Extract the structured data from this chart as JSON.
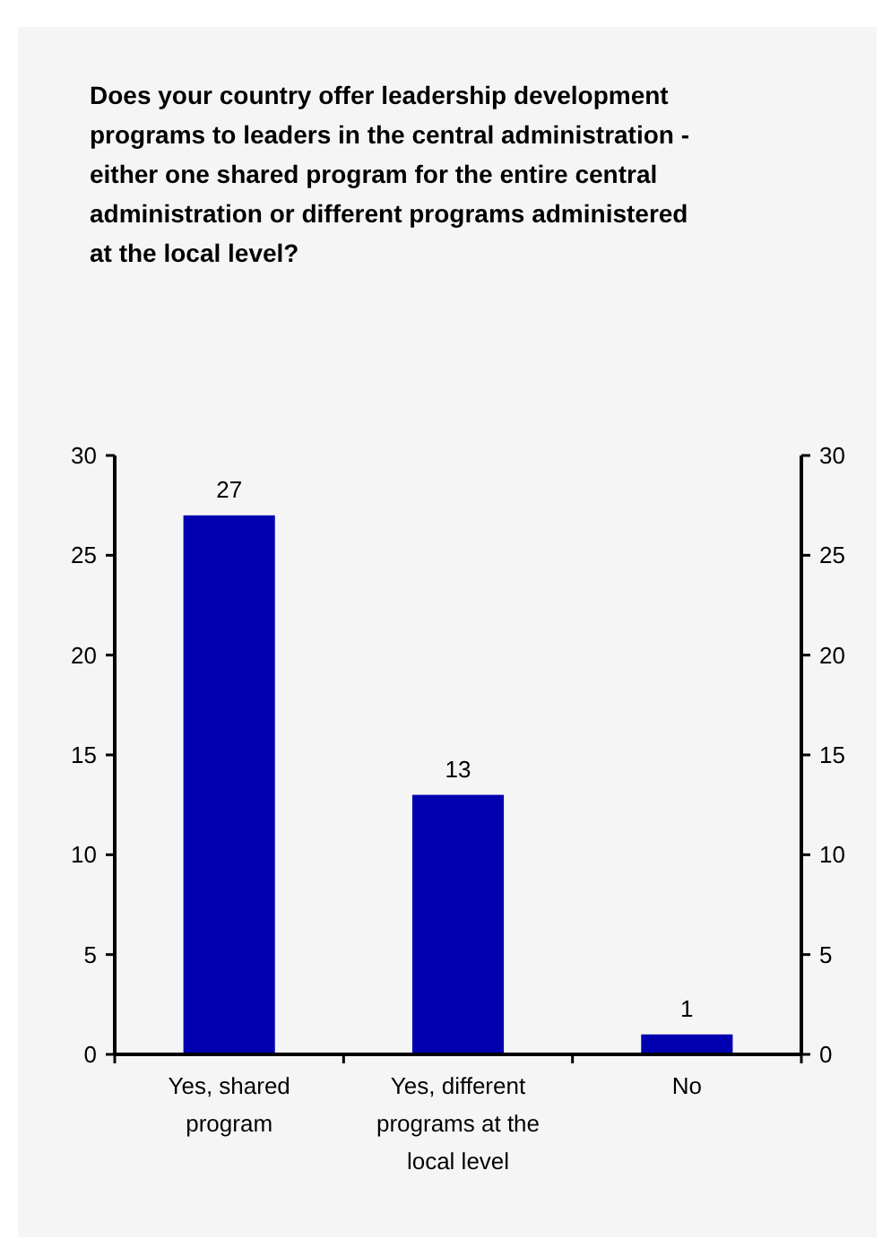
{
  "chart_data": {
    "type": "bar",
    "title": "Does your country offer leadership development programs to leaders in the central administration - either one shared program for the entire central administration or different programs administered at the local level?",
    "categories": [
      "Yes, shared program",
      "Yes, different programs at the local level",
      "No"
    ],
    "values": [
      27,
      13,
      1
    ],
    "color": "#0000b0",
    "data_labels": true,
    "ylim": [
      0,
      30
    ],
    "yticks": [
      0,
      5,
      10,
      15,
      20,
      25,
      30
    ],
    "y2lim": [
      0,
      30
    ],
    "y2ticks": [
      0,
      5,
      10,
      15,
      20,
      25,
      30
    ],
    "grid": false
  }
}
